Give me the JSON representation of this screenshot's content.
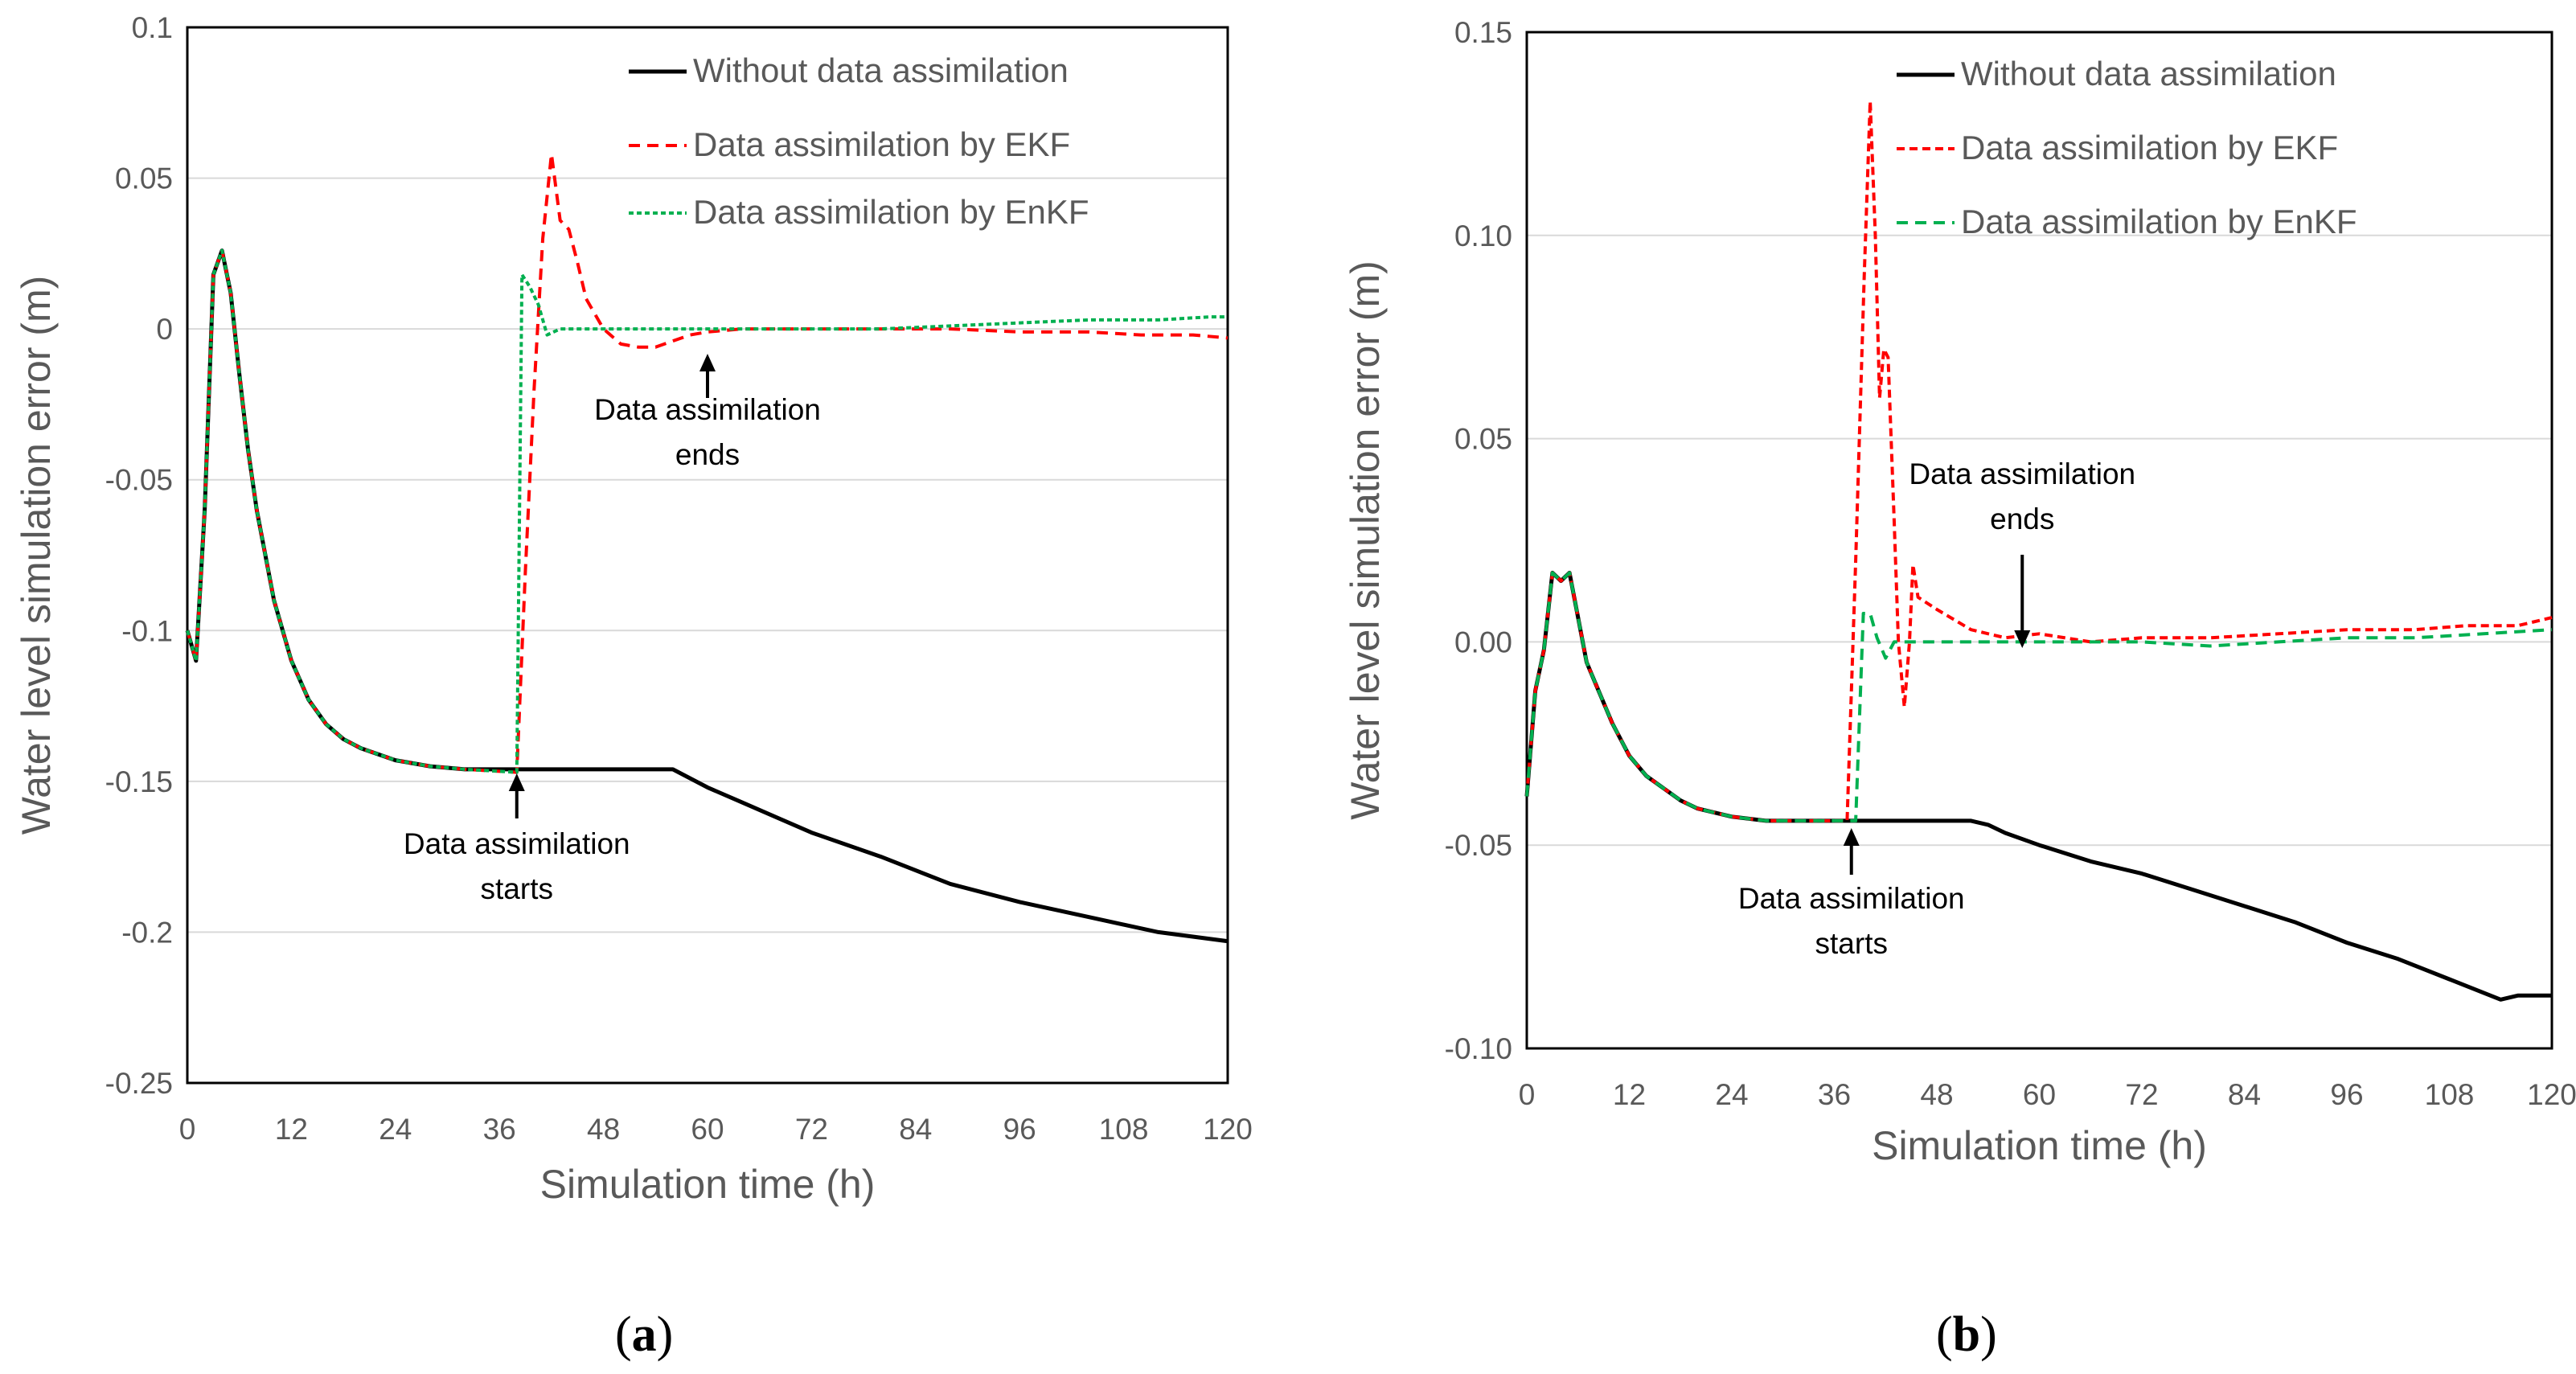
{
  "colors": {
    "axis_text": "#595959",
    "grid": "#d9d9d9",
    "without": "#000000",
    "ekf": "#ff0000",
    "enkf": "#00b050"
  },
  "chart_data": [
    {
      "type": "line",
      "panel_label": {
        "open": "(",
        "letter": "a",
        "close": ")"
      },
      "xlabel": "Simulation time (h)",
      "ylabel": "Water level simulation error (m)",
      "xlim": [
        0,
        120
      ],
      "ylim": [
        -0.25,
        0.1
      ],
      "x_ticks": [
        0,
        12,
        24,
        36,
        48,
        60,
        72,
        84,
        96,
        108,
        120
      ],
      "x_tick_labels": [
        "0",
        "12",
        "24",
        "36",
        "48",
        "60",
        "72",
        "84",
        "96",
        "108",
        "120"
      ],
      "y_ticks": [
        0.1,
        0.05,
        0,
        -0.05,
        -0.1,
        -0.15,
        -0.2,
        -0.25
      ],
      "y_tick_labels": [
        "0.1",
        "0.05",
        "0",
        "-0.05",
        "-0.1",
        "-0.15",
        "-0.2",
        "-0.25"
      ],
      "grid": true,
      "legend_position": "top-right",
      "series": [
        {
          "key": "without",
          "name": "Without data assimilation",
          "color": "#000000",
          "dash": "solid",
          "points": [
            [
              0,
              -0.1
            ],
            [
              1,
              -0.11
            ],
            [
              2,
              -0.06
            ],
            [
              3,
              0.018
            ],
            [
              4,
              0.026
            ],
            [
              5,
              0.012
            ],
            [
              6,
              -0.015
            ],
            [
              7,
              -0.04
            ],
            [
              8,
              -0.06
            ],
            [
              10,
              -0.09
            ],
            [
              12,
              -0.11
            ],
            [
              14,
              -0.123
            ],
            [
              16,
              -0.131
            ],
            [
              18,
              -0.136
            ],
            [
              20,
              -0.139
            ],
            [
              24,
              -0.143
            ],
            [
              28,
              -0.145
            ],
            [
              32,
              -0.146
            ],
            [
              36,
              -0.146
            ],
            [
              40,
              -0.146
            ],
            [
              44,
              -0.146
            ],
            [
              48,
              -0.146
            ],
            [
              52,
              -0.146
            ],
            [
              56,
              -0.146
            ],
            [
              60,
              -0.152
            ],
            [
              64,
              -0.157
            ],
            [
              72,
              -0.167
            ],
            [
              80,
              -0.175
            ],
            [
              88,
              -0.184
            ],
            [
              96,
              -0.19
            ],
            [
              104,
              -0.195
            ],
            [
              112,
              -0.2
            ],
            [
              120,
              -0.203
            ]
          ]
        },
        {
          "key": "ekf",
          "name": "Data assimilation by EKF",
          "color": "#ff0000",
          "dash": "14,9",
          "points": [
            [
              0,
              -0.1
            ],
            [
              1,
              -0.11
            ],
            [
              2,
              -0.06
            ],
            [
              3,
              0.018
            ],
            [
              4,
              0.026
            ],
            [
              5,
              0.012
            ],
            [
              6,
              -0.015
            ],
            [
              7,
              -0.04
            ],
            [
              8,
              -0.06
            ],
            [
              10,
              -0.09
            ],
            [
              12,
              -0.11
            ],
            [
              14,
              -0.123
            ],
            [
              16,
              -0.131
            ],
            [
              18,
              -0.136
            ],
            [
              20,
              -0.139
            ],
            [
              24,
              -0.143
            ],
            [
              28,
              -0.145
            ],
            [
              32,
              -0.146
            ],
            [
              38,
              -0.147
            ],
            [
              39,
              -0.08
            ],
            [
              40,
              -0.02
            ],
            [
              41,
              0.03
            ],
            [
              42,
              0.058
            ],
            [
              43,
              0.036
            ],
            [
              44,
              0.033
            ],
            [
              45,
              0.022
            ],
            [
              46,
              0.01
            ],
            [
              48,
              0.0
            ],
            [
              50,
              -0.005
            ],
            [
              52,
              -0.006
            ],
            [
              54,
              -0.006
            ],
            [
              56,
              -0.004
            ],
            [
              58,
              -0.002
            ],
            [
              60,
              -0.001
            ],
            [
              64,
              0.0
            ],
            [
              72,
              0.0
            ],
            [
              80,
              0.0
            ],
            [
              88,
              0.0
            ],
            [
              96,
              -0.001
            ],
            [
              104,
              -0.001
            ],
            [
              110,
              -0.002
            ],
            [
              116,
              -0.002
            ],
            [
              120,
              -0.003
            ]
          ]
        },
        {
          "key": "enkf",
          "name": "Data assimilation by EnKF",
          "color": "#00b050",
          "dash": "6,4",
          "points": [
            [
              0,
              -0.1
            ],
            [
              1,
              -0.11
            ],
            [
              2,
              -0.06
            ],
            [
              3,
              0.018
            ],
            [
              4,
              0.026
            ],
            [
              5,
              0.012
            ],
            [
              6,
              -0.015
            ],
            [
              7,
              -0.04
            ],
            [
              8,
              -0.06
            ],
            [
              10,
              -0.09
            ],
            [
              12,
              -0.11
            ],
            [
              14,
              -0.123
            ],
            [
              16,
              -0.131
            ],
            [
              18,
              -0.136
            ],
            [
              20,
              -0.139
            ],
            [
              24,
              -0.143
            ],
            [
              28,
              -0.145
            ],
            [
              32,
              -0.146
            ],
            [
              38,
              -0.147
            ],
            [
              38.6,
              0.018
            ],
            [
              39.5,
              0.014
            ],
            [
              40.5,
              0.008
            ],
            [
              41.5,
              -0.002
            ],
            [
              43,
              0.0
            ],
            [
              48,
              0.0
            ],
            [
              56,
              0.0
            ],
            [
              64,
              0.0
            ],
            [
              72,
              0.0
            ],
            [
              80,
              0.0
            ],
            [
              88,
              0.001
            ],
            [
              96,
              0.002
            ],
            [
              104,
              0.003
            ],
            [
              112,
              0.003
            ],
            [
              118,
              0.004
            ],
            [
              120,
              0.004
            ]
          ]
        }
      ],
      "annotations": [
        {
          "line1": "Data assimilation",
          "line2": "starts",
          "x": 38
        },
        {
          "line1": "Data assimilation",
          "line2": "ends",
          "x": 60
        }
      ]
    },
    {
      "type": "line",
      "panel_label": {
        "open": "(",
        "letter": "b",
        "close": ")"
      },
      "xlabel": "Simulation time (h)",
      "ylabel": "Water level simulation error (m)",
      "xlim": [
        0,
        120
      ],
      "ylim": [
        -0.1,
        0.15
      ],
      "x_ticks": [
        0,
        12,
        24,
        36,
        48,
        60,
        72,
        84,
        96,
        108,
        120
      ],
      "x_tick_labels": [
        "0",
        "12",
        "24",
        "36",
        "48",
        "60",
        "72",
        "84",
        "96",
        "108",
        "120"
      ],
      "y_ticks": [
        0.15,
        0.1,
        0.05,
        0.0,
        -0.05,
        -0.1
      ],
      "y_tick_labels": [
        "0.15",
        "0.10",
        "0.05",
        "0.00",
        "-0.05",
        "-0.10"
      ],
      "grid": true,
      "legend_position": "top-right",
      "series": [
        {
          "key": "without",
          "name": "Without data assimilation",
          "color": "#000000",
          "dash": "solid",
          "points": [
            [
              0,
              -0.038
            ],
            [
              1,
              -0.012
            ],
            [
              2,
              -0.002
            ],
            [
              3,
              0.017
            ],
            [
              4,
              0.015
            ],
            [
              5,
              0.017
            ],
            [
              6,
              0.006
            ],
            [
              7,
              -0.005
            ],
            [
              8,
              -0.01
            ],
            [
              10,
              -0.02
            ],
            [
              12,
              -0.028
            ],
            [
              14,
              -0.033
            ],
            [
              16,
              -0.036
            ],
            [
              18,
              -0.039
            ],
            [
              20,
              -0.041
            ],
            [
              24,
              -0.043
            ],
            [
              28,
              -0.044
            ],
            [
              32,
              -0.044
            ],
            [
              36,
              -0.044
            ],
            [
              40,
              -0.044
            ],
            [
              44,
              -0.044
            ],
            [
              48,
              -0.044
            ],
            [
              52,
              -0.044
            ],
            [
              54,
              -0.045
            ],
            [
              56,
              -0.047
            ],
            [
              60,
              -0.05
            ],
            [
              66,
              -0.054
            ],
            [
              72,
              -0.057
            ],
            [
              78,
              -0.061
            ],
            [
              84,
              -0.065
            ],
            [
              90,
              -0.069
            ],
            [
              96,
              -0.074
            ],
            [
              102,
              -0.078
            ],
            [
              108,
              -0.083
            ],
            [
              114,
              -0.088
            ],
            [
              116,
              -0.087
            ],
            [
              120,
              -0.087
            ]
          ]
        },
        {
          "key": "ekf",
          "name": "Data assimilation by EKF",
          "color": "#ff0000",
          "dash": "10,6",
          "points": [
            [
              0,
              -0.038
            ],
            [
              1,
              -0.012
            ],
            [
              2,
              -0.002
            ],
            [
              3,
              0.017
            ],
            [
              4,
              0.015
            ],
            [
              5,
              0.017
            ],
            [
              6,
              0.006
            ],
            [
              7,
              -0.005
            ],
            [
              8,
              -0.01
            ],
            [
              10,
              -0.02
            ],
            [
              12,
              -0.028
            ],
            [
              14,
              -0.033
            ],
            [
              16,
              -0.036
            ],
            [
              18,
              -0.039
            ],
            [
              20,
              -0.041
            ],
            [
              24,
              -0.043
            ],
            [
              28,
              -0.044
            ],
            [
              32,
              -0.044
            ],
            [
              37.5,
              -0.044
            ],
            [
              38.5,
              0.02
            ],
            [
              39.5,
              0.09
            ],
            [
              40.2,
              0.133
            ],
            [
              40.8,
              0.1
            ],
            [
              41.3,
              0.06
            ],
            [
              41.8,
              0.072
            ],
            [
              42.3,
              0.07
            ],
            [
              43,
              0.03
            ],
            [
              43.5,
              0.0
            ],
            [
              44.2,
              -0.016
            ],
            [
              44.8,
              0.0
            ],
            [
              45.2,
              0.019
            ],
            [
              45.8,
              0.011
            ],
            [
              48,
              0.008
            ],
            [
              52,
              0.003
            ],
            [
              56,
              0.001
            ],
            [
              60,
              0.002
            ],
            [
              66,
              0.0
            ],
            [
              72,
              0.001
            ],
            [
              80,
              0.001
            ],
            [
              88,
              0.002
            ],
            [
              96,
              0.003
            ],
            [
              104,
              0.003
            ],
            [
              110,
              0.004
            ],
            [
              116,
              0.004
            ],
            [
              120,
              0.006
            ]
          ]
        },
        {
          "key": "enkf",
          "name": "Data assimilation by EnKF",
          "color": "#00b050",
          "dash": "14,9",
          "points": [
            [
              0,
              -0.038
            ],
            [
              1,
              -0.012
            ],
            [
              2,
              -0.002
            ],
            [
              3,
              0.017
            ],
            [
              4,
              0.015
            ],
            [
              5,
              0.017
            ],
            [
              6,
              0.006
            ],
            [
              7,
              -0.005
            ],
            [
              8,
              -0.01
            ],
            [
              10,
              -0.02
            ],
            [
              12,
              -0.028
            ],
            [
              14,
              -0.033
            ],
            [
              16,
              -0.036
            ],
            [
              18,
              -0.039
            ],
            [
              20,
              -0.041
            ],
            [
              24,
              -0.043
            ],
            [
              28,
              -0.044
            ],
            [
              32,
              -0.044
            ],
            [
              38.5,
              -0.044
            ],
            [
              39.4,
              0.007
            ],
            [
              40.2,
              0.007
            ],
            [
              41,
              0.001
            ],
            [
              42,
              -0.004
            ],
            [
              43,
              0.0
            ],
            [
              48,
              0.0
            ],
            [
              56,
              0.0
            ],
            [
              64,
              0.0
            ],
            [
              72,
              0.0
            ],
            [
              80,
              -0.001
            ],
            [
              88,
              0.0
            ],
            [
              96,
              0.001
            ],
            [
              104,
              0.001
            ],
            [
              112,
              0.002
            ],
            [
              120,
              0.003
            ]
          ]
        }
      ],
      "annotations": [
        {
          "line1": "Data assimilation",
          "line2": "starts",
          "x": 38
        },
        {
          "line1": "Data assimilation",
          "line2": "ends",
          "x": 58
        }
      ]
    }
  ]
}
